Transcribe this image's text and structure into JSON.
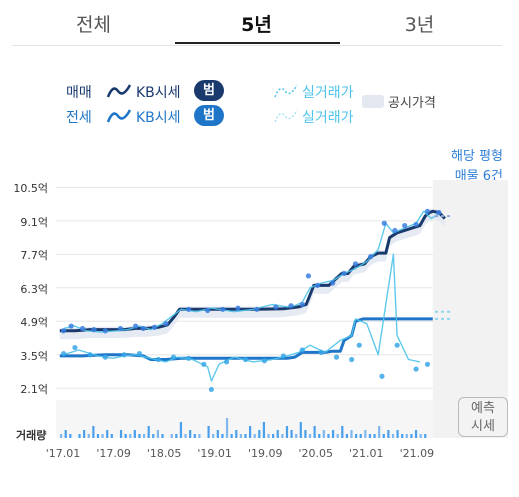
{
  "tabs": [
    {
      "label": "전체",
      "active": false
    },
    {
      "label": "5년",
      "active": true
    },
    {
      "label": "3년",
      "active": false
    }
  ],
  "legend": {
    "sale_label": "매매",
    "jeonse_label": "전세",
    "kb_label": "KB시세",
    "range_button": "범위보기",
    "actual_label": "실거래가",
    "official_label": "공시가격",
    "colors": {
      "sale": "#1a3a6e",
      "jeonse": "#1f76c8",
      "actual": "#4cc3ea",
      "official_band": "#e3e8f1"
    }
  },
  "listing": {
    "line1": "해당 평형",
    "line2": "매물 6건"
  },
  "volume_label": "거래량",
  "prediction_button": {
    "line1": "예측",
    "line2": "시세"
  },
  "chart_data": {
    "type": "line",
    "y_unit": "억",
    "y_ticks": [
      "10.5억",
      "9.1억",
      "7.7억",
      "6.3억",
      "4.9억",
      "3.5억",
      "2.1억"
    ],
    "y_tick_values": [
      10.5,
      9.1,
      7.7,
      6.3,
      4.9,
      3.5,
      2.1
    ],
    "ylim": [
      1.9,
      10.6
    ],
    "x_ticks": [
      "'17.01",
      "'17.09",
      "'18.05",
      "'19.01",
      "'19.09",
      "'20.05",
      "'21.01",
      "'21.09"
    ],
    "x_tick_values": [
      2017.0,
      2017.667,
      2018.333,
      2019.0,
      2019.667,
      2020.333,
      2021.0,
      2021.667
    ],
    "xlim": [
      2016.95,
      2022.2
    ],
    "forecast_from": 2021.92,
    "series": [
      {
        "name": "매매 KB시세",
        "color": "#1a3a6e",
        "points": [
          [
            2017.0,
            4.5
          ],
          [
            2017.2,
            4.5
          ],
          [
            2017.4,
            4.55
          ],
          [
            2017.6,
            4.55
          ],
          [
            2017.85,
            4.55
          ],
          [
            2018.0,
            4.6
          ],
          [
            2018.15,
            4.6
          ],
          [
            2018.3,
            4.65
          ],
          [
            2018.42,
            4.75
          ],
          [
            2018.5,
            5.05
          ],
          [
            2018.58,
            5.4
          ],
          [
            2018.9,
            5.4
          ],
          [
            2019.2,
            5.4
          ],
          [
            2019.6,
            5.4
          ],
          [
            2019.95,
            5.42
          ],
          [
            2020.15,
            5.5
          ],
          [
            2020.25,
            5.6
          ],
          [
            2020.3,
            6.0
          ],
          [
            2020.35,
            6.4
          ],
          [
            2020.55,
            6.4
          ],
          [
            2020.65,
            6.7
          ],
          [
            2020.72,
            6.9
          ],
          [
            2020.8,
            6.9
          ],
          [
            2020.88,
            7.2
          ],
          [
            2020.95,
            7.25
          ],
          [
            2021.02,
            7.3
          ],
          [
            2021.1,
            7.6
          ],
          [
            2021.2,
            7.75
          ],
          [
            2021.3,
            7.75
          ],
          [
            2021.35,
            8.4
          ],
          [
            2021.45,
            8.6
          ],
          [
            2021.6,
            8.75
          ],
          [
            2021.75,
            8.9
          ],
          [
            2021.82,
            9.3
          ],
          [
            2021.88,
            9.45
          ],
          [
            2021.92,
            9.5
          ],
          [
            2022.0,
            9.45
          ],
          [
            2022.08,
            9.2
          ]
        ]
      },
      {
        "name": "전세 KB시세",
        "color": "#1f76c8",
        "points": [
          [
            2017.0,
            3.45
          ],
          [
            2017.3,
            3.45
          ],
          [
            2017.6,
            3.5
          ],
          [
            2017.9,
            3.5
          ],
          [
            2018.1,
            3.45
          ],
          [
            2018.2,
            3.3
          ],
          [
            2018.4,
            3.3
          ],
          [
            2018.6,
            3.35
          ],
          [
            2018.8,
            3.35
          ],
          [
            2019.0,
            3.35
          ],
          [
            2019.4,
            3.35
          ],
          [
            2019.8,
            3.35
          ],
          [
            2020.0,
            3.35
          ],
          [
            2020.1,
            3.4
          ],
          [
            2020.2,
            3.6
          ],
          [
            2020.5,
            3.6
          ],
          [
            2020.6,
            3.65
          ],
          [
            2020.7,
            3.65
          ],
          [
            2020.75,
            4.1
          ],
          [
            2020.8,
            4.2
          ],
          [
            2020.85,
            4.3
          ],
          [
            2020.9,
            4.9
          ],
          [
            2021.0,
            5.0
          ],
          [
            2021.5,
            5.0
          ],
          [
            2021.92,
            5.0
          ]
        ]
      },
      {
        "name": "매매 실거래가",
        "color": "#4cc3ea",
        "points": [
          [
            2017.05,
            4.6
          ],
          [
            2017.2,
            4.7
          ],
          [
            2017.35,
            4.5
          ],
          [
            2017.55,
            4.45
          ],
          [
            2017.75,
            4.5
          ],
          [
            2017.9,
            4.55
          ],
          [
            2018.05,
            4.7
          ],
          [
            2018.2,
            4.55
          ],
          [
            2018.35,
            4.8
          ],
          [
            2018.6,
            5.4
          ],
          [
            2018.8,
            5.3
          ],
          [
            2019.0,
            5.45
          ],
          [
            2019.3,
            5.3
          ],
          [
            2019.55,
            5.4
          ],
          [
            2019.8,
            5.6
          ],
          [
            2020.0,
            5.5
          ],
          [
            2020.1,
            5.55
          ],
          [
            2020.2,
            5.7
          ],
          [
            2020.3,
            6.3
          ],
          [
            2020.45,
            6.5
          ],
          [
            2020.6,
            6.6
          ],
          [
            2020.75,
            6.9
          ],
          [
            2020.9,
            7.1
          ],
          [
            2021.05,
            7.4
          ],
          [
            2021.2,
            7.9
          ],
          [
            2021.3,
            9.0
          ],
          [
            2021.4,
            8.6
          ],
          [
            2021.55,
            8.8
          ],
          [
            2021.7,
            9.0
          ],
          [
            2021.8,
            9.5
          ],
          [
            2021.9,
            9.2
          ],
          [
            2022.0,
            9.4
          ]
        ]
      },
      {
        "name": "전세 실거래가",
        "color": "#4cc3ea",
        "points": [
          [
            2017.05,
            3.5
          ],
          [
            2017.25,
            3.7
          ],
          [
            2017.5,
            3.45
          ],
          [
            2017.7,
            3.35
          ],
          [
            2017.85,
            3.45
          ],
          [
            2018.0,
            3.5
          ],
          [
            2018.2,
            3.35
          ],
          [
            2018.4,
            3.2
          ],
          [
            2018.55,
            3.4
          ],
          [
            2018.75,
            3.3
          ],
          [
            2018.95,
            3.0
          ],
          [
            2019.0,
            2.4
          ],
          [
            2019.1,
            3.1
          ],
          [
            2019.3,
            3.4
          ],
          [
            2019.55,
            3.2
          ],
          [
            2019.8,
            3.3
          ],
          [
            2020.0,
            3.45
          ],
          [
            2020.15,
            3.6
          ],
          [
            2020.3,
            3.9
          ],
          [
            2020.5,
            3.6
          ],
          [
            2020.7,
            4.1
          ],
          [
            2020.85,
            4.3
          ],
          [
            2020.9,
            5.0
          ],
          [
            2021.05,
            4.8
          ],
          [
            2021.2,
            3.5
          ],
          [
            2021.4,
            7.7
          ],
          [
            2021.45,
            4.3
          ],
          [
            2021.6,
            3.3
          ],
          [
            2021.75,
            3.2
          ]
        ]
      },
      {
        "name": "매매 실거래 점",
        "color": "#3a7fe0",
        "scatter": true,
        "points": [
          [
            2017.05,
            4.5
          ],
          [
            2017.15,
            4.7
          ],
          [
            2017.3,
            4.6
          ],
          [
            2017.45,
            4.55
          ],
          [
            2017.6,
            4.5
          ],
          [
            2017.8,
            4.6
          ],
          [
            2018.0,
            4.7
          ],
          [
            2018.1,
            4.6
          ],
          [
            2018.25,
            4.65
          ],
          [
            2018.4,
            4.8
          ],
          [
            2018.7,
            5.4
          ],
          [
            2018.95,
            5.35
          ],
          [
            2019.15,
            5.4
          ],
          [
            2019.35,
            5.45
          ],
          [
            2019.6,
            5.4
          ],
          [
            2019.85,
            5.5
          ],
          [
            2020.05,
            5.55
          ],
          [
            2020.2,
            5.6
          ],
          [
            2020.28,
            6.8
          ],
          [
            2020.4,
            6.4
          ],
          [
            2020.6,
            6.5
          ],
          [
            2020.75,
            6.9
          ],
          [
            2020.9,
            7.3
          ],
          [
            2021.1,
            7.6
          ],
          [
            2021.28,
            9.0
          ],
          [
            2021.42,
            8.7
          ],
          [
            2021.55,
            8.9
          ],
          [
            2021.7,
            8.95
          ],
          [
            2021.85,
            9.5
          ],
          [
            2022.0,
            9.45
          ]
        ]
      },
      {
        "name": "전세 실거래 점",
        "color": "#3aa7e8",
        "scatter": true,
        "points": [
          [
            2017.05,
            3.55
          ],
          [
            2017.2,
            3.8
          ],
          [
            2017.4,
            3.5
          ],
          [
            2017.6,
            3.4
          ],
          [
            2017.85,
            3.5
          ],
          [
            2018.05,
            3.55
          ],
          [
            2018.3,
            3.3
          ],
          [
            2018.5,
            3.4
          ],
          [
            2018.7,
            3.35
          ],
          [
            2018.9,
            3.1
          ],
          [
            2019.0,
            2.05
          ],
          [
            2019.2,
            3.2
          ],
          [
            2019.45,
            3.3
          ],
          [
            2019.7,
            3.25
          ],
          [
            2019.95,
            3.45
          ],
          [
            2020.2,
            3.7
          ],
          [
            2020.45,
            3.6
          ],
          [
            2020.65,
            3.4
          ],
          [
            2020.85,
            3.3
          ],
          [
            2020.95,
            3.9
          ],
          [
            2021.25,
            2.6
          ],
          [
            2021.45,
            3.9
          ],
          [
            2021.7,
            2.9
          ],
          [
            2021.85,
            3.1
          ]
        ]
      }
    ],
    "volume": [
      1,
      2,
      1,
      0,
      1,
      2,
      1,
      3,
      1,
      1,
      2,
      1,
      0,
      2,
      1,
      1,
      2,
      1,
      1,
      3,
      1,
      2,
      1,
      0,
      1,
      1,
      4,
      1,
      2,
      1,
      1,
      0,
      3,
      1,
      2,
      1,
      5,
      1,
      2,
      1,
      1,
      3,
      1,
      2,
      4,
      1,
      1,
      2,
      1,
      3,
      2,
      1,
      4,
      2,
      1,
      3,
      1,
      2,
      1,
      2,
      1,
      3,
      1,
      2,
      1,
      1,
      2,
      1,
      1,
      3,
      1,
      2,
      1,
      2,
      1,
      1,
      1,
      2,
      1,
      1
    ]
  }
}
